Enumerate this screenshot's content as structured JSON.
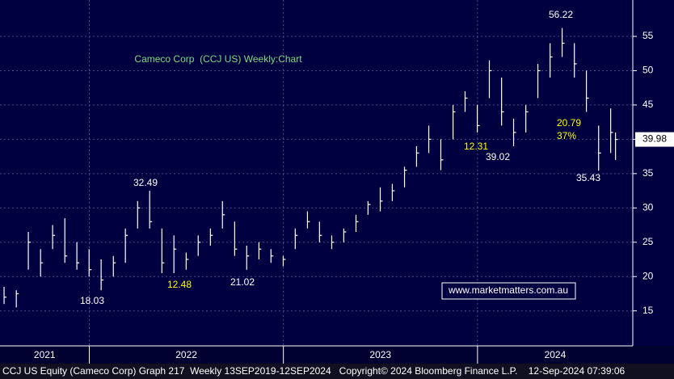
{
  "chart_data": {
    "type": "hlc",
    "title": "Cameco Corp  (CCJ US) Weekly:Chart",
    "watermark": "www.marketmatters.com.au",
    "footer": "CCJ US Equity (Cameco Corp) Graph 217  Weekly 13SEP2019-12SEP2024   Copyright© 2024 Bloomberg Finance L.P.    12-Sep-2024 07:39:06",
    "color": "#ffffff",
    "x": [
      2021.561,
      2021.624,
      2021.686,
      2021.749,
      2021.811,
      2021.874,
      2021.936,
      2021.999,
      2022.061,
      2022.124,
      2022.186,
      2022.249,
      2022.311,
      2022.374,
      2022.436,
      2022.499,
      2022.561,
      2022.624,
      2022.686,
      2022.749,
      2022.811,
      2022.874,
      2022.936,
      2022.999,
      2023.061,
      2023.124,
      2023.186,
      2023.249,
      2023.311,
      2023.374,
      2023.436,
      2023.499,
      2023.561,
      2023.624,
      2023.686,
      2023.749,
      2023.811,
      2023.874,
      2023.936,
      2023.999,
      2024.061,
      2024.124,
      2024.186,
      2024.249,
      2024.311,
      2024.374,
      2024.436,
      2024.499,
      2024.561,
      2024.624,
      2024.686,
      2024.711
    ],
    "high": [
      18.5,
      18,
      26.5,
      24,
      27.5,
      28.5,
      25,
      24,
      22.5,
      23,
      27,
      31,
      32.5,
      27,
      26,
      23.5,
      26,
      27,
      31,
      28,
      24.5,
      25,
      24,
      23,
      27,
      29.5,
      28,
      26,
      27,
      29,
      31,
      33,
      33.5,
      36,
      39,
      42,
      40,
      45,
      47,
      45,
      51.5,
      49,
      43,
      45,
      51,
      54,
      56.22,
      54,
      50,
      42,
      44.5,
      41
    ],
    "low": [
      16,
      15.5,
      21,
      20,
      24,
      22,
      21,
      20,
      18,
      20,
      22,
      27,
      27,
      20.5,
      20.5,
      21,
      23,
      24.5,
      27,
      23,
      21,
      22.5,
      22,
      21.5,
      24,
      27,
      25,
      24,
      25,
      26.5,
      29,
      29.5,
      31,
      33,
      36,
      38,
      35.5,
      40,
      44,
      41,
      46,
      42,
      39,
      41,
      46,
      49,
      52,
      49,
      44,
      35.43,
      38,
      37
    ],
    "close": [
      17,
      17.5,
      25,
      22,
      26,
      23,
      22,
      21,
      19.5,
      22,
      26,
      30,
      28,
      22,
      24,
      22.5,
      25,
      26,
      29,
      24,
      23,
      24,
      23,
      22.5,
      26,
      28,
      26,
      25,
      26.5,
      28,
      30.5,
      31,
      32.5,
      35.5,
      38,
      40,
      37,
      44,
      46,
      42,
      50,
      44,
      41,
      44,
      50,
      52,
      54,
      51,
      46,
      38,
      41,
      39.98
    ],
    "xlim": [
      2021.54,
      2024.8
    ],
    "xticks": [
      2022,
      2023,
      2024
    ],
    "xlabels": [
      {
        "value": 2021.77,
        "label": "2021"
      },
      {
        "value": 2022.5,
        "label": "2022"
      },
      {
        "value": 2023.5,
        "label": "2023"
      },
      {
        "value": 2024.4,
        "label": "2024"
      }
    ],
    "ylim": [
      9.9,
      60.3
    ],
    "yticks": [
      15,
      20,
      25,
      30,
      35,
      40,
      45,
      50,
      55
    ],
    "grid": true,
    "annotations": [
      {
        "text": "56.22",
        "color": "#ffffff"
      },
      {
        "text": "32.49",
        "color": "#ffffff"
      },
      {
        "text": "18.03",
        "color": "#ffffff"
      },
      {
        "text": "12.48",
        "color": "#ffff00"
      },
      {
        "text": "21.02",
        "color": "#ffffff"
      },
      {
        "text": "12.31",
        "color": "#ffff00"
      },
      {
        "text": "39.02",
        "color": "#ffffff"
      },
      {
        "text": "20.79",
        "color": "#ffff00"
      },
      {
        "text": "37%",
        "color": "#ffff00"
      },
      {
        "text": "35.43",
        "color": "#ffffff"
      }
    ]
  }
}
